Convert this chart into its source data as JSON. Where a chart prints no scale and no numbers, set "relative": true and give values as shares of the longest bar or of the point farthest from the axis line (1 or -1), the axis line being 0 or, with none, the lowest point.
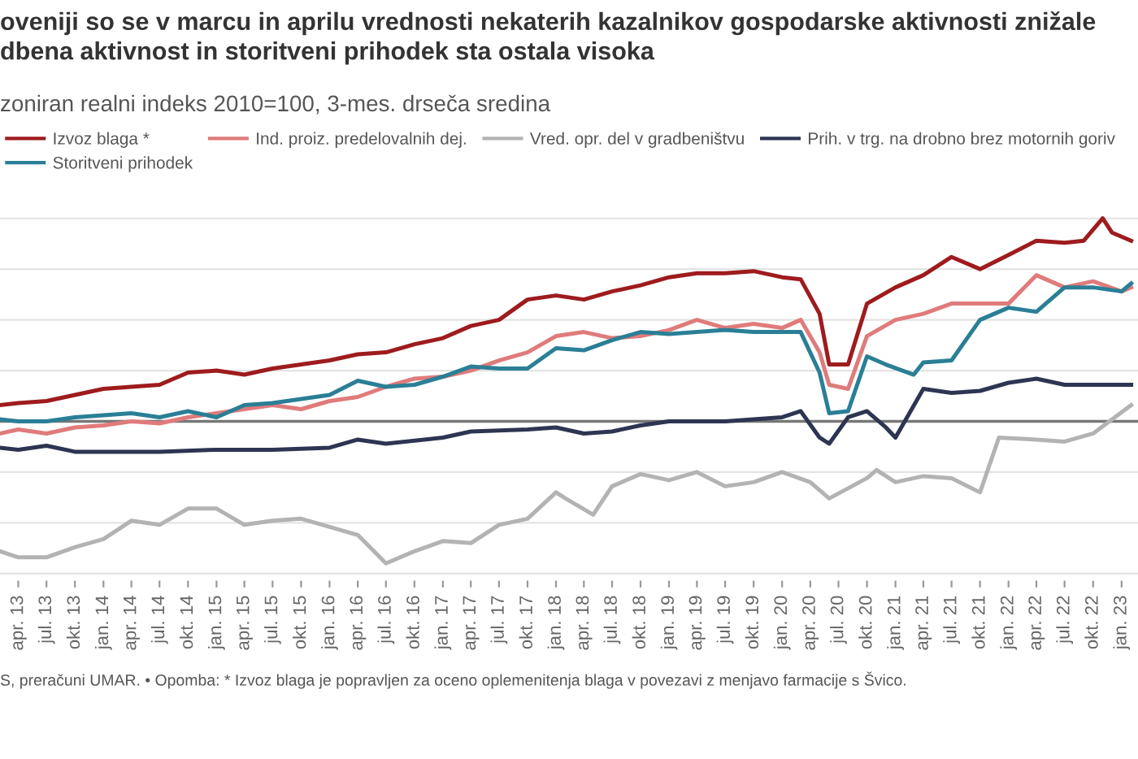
{
  "chart_data": {
    "type": "line",
    "title": "oveniji so se v marcu in aprilu vrednosti nekaterih kazalnikov gospodarske aktivnosti znižale\ndbena aktivnost in storitveni prihodek sta ostala visoka",
    "subtitle": "zoniran realni indeks 2010=100, 3-mes. drseča sredina",
    "relative": true,
    "grid": "y",
    "legend": "top left",
    "line_style": "solid",
    "marker": "none",
    "xlim": [
      "2013-02-01",
      "2023-02-23"
    ],
    "xticks": [
      {
        "value": "2013-04",
        "label": "apr. 13"
      },
      {
        "value": "2013-07",
        "label": "jul. 13"
      },
      {
        "value": "2013-10",
        "label": "okt. 13"
      },
      {
        "value": "2014-01",
        "label": "jan. 14"
      },
      {
        "value": "2014-04",
        "label": "apr. 14"
      },
      {
        "value": "2014-07",
        "label": "jul. 14"
      },
      {
        "value": "2014-10",
        "label": "okt. 14"
      },
      {
        "value": "2015-01",
        "label": "jan. 15"
      },
      {
        "value": "2015-04",
        "label": "apr. 15"
      },
      {
        "value": "2015-07",
        "label": "jul. 15"
      },
      {
        "value": "2015-10",
        "label": "okt. 15"
      },
      {
        "value": "2016-01",
        "label": "jan. 16"
      },
      {
        "value": "2016-04",
        "label": "apr. 16"
      },
      {
        "value": "2016-07",
        "label": "jul. 16"
      },
      {
        "value": "2016-10",
        "label": "okt. 16"
      },
      {
        "value": "2017-01",
        "label": "jan. 17"
      },
      {
        "value": "2017-04",
        "label": "apr. 17"
      },
      {
        "value": "2017-07",
        "label": "jul. 17"
      },
      {
        "value": "2017-10",
        "label": "okt. 17"
      },
      {
        "value": "2018-01",
        "label": "jan. 18"
      },
      {
        "value": "2018-04",
        "label": "apr. 18"
      },
      {
        "value": "2018-07",
        "label": "jul. 18"
      },
      {
        "value": "2018-10",
        "label": "okt. 18"
      },
      {
        "value": "2019-01",
        "label": "jan. 19"
      },
      {
        "value": "2019-04",
        "label": "apr. 19"
      },
      {
        "value": "2019-07",
        "label": "jul. 19"
      },
      {
        "value": "2019-10",
        "label": "okt. 19"
      },
      {
        "value": "2020-01",
        "label": "jan. 20"
      },
      {
        "value": "2020-04",
        "label": "apr. 20"
      },
      {
        "value": "2020-07",
        "label": "jul. 20"
      },
      {
        "value": "2020-10",
        "label": "okt. 20"
      },
      {
        "value": "2021-01",
        "label": "jan. 21"
      },
      {
        "value": "2021-04",
        "label": "apr. 21"
      },
      {
        "value": "2021-07",
        "label": "jul. 21"
      },
      {
        "value": "2021-10",
        "label": "okt. 21"
      },
      {
        "value": "2022-01",
        "label": "jan. 22"
      },
      {
        "value": "2022-04",
        "label": "apr. 22"
      },
      {
        "value": "2022-07",
        "label": "jul. 22"
      },
      {
        "value": "2022-10",
        "label": "okt. 22"
      },
      {
        "value": "2023-01",
        "label": "jan. 23"
      }
    ],
    "series": [
      {
        "name": "Izvoz blaga *",
        "color": "#9e1b1e",
        "x": [
          "2013-02",
          "2013-04",
          "2013-07",
          "2013-10",
          "2014-01",
          "2014-04",
          "2014-07",
          "2014-10",
          "2015-01",
          "2015-04",
          "2015-07",
          "2015-10",
          "2016-01",
          "2016-04",
          "2016-07",
          "2016-10",
          "2017-01",
          "2017-04",
          "2017-07",
          "2017-10",
          "2018-01",
          "2018-04",
          "2018-07",
          "2018-10",
          "2019-01",
          "2019-04",
          "2019-07",
          "2019-10",
          "2020-01",
          "2020-03",
          "2020-05",
          "2020-06",
          "2020-08",
          "2020-10",
          "2021-01",
          "2021-04",
          "2021-07",
          "2021-10",
          "2022-01",
          "2022-04",
          "2022-07",
          "2022-09",
          "2022-11",
          "2022-12",
          "2023-02"
        ],
        "values": [
          0.08,
          0.09,
          0.1,
          0.13,
          0.16,
          0.17,
          0.18,
          0.24,
          0.25,
          0.23,
          0.26,
          0.28,
          0.3,
          0.33,
          0.34,
          0.38,
          0.41,
          0.47,
          0.5,
          0.6,
          0.62,
          0.6,
          0.64,
          0.67,
          0.71,
          0.73,
          0.73,
          0.74,
          0.71,
          0.7,
          0.53,
          0.28,
          0.28,
          0.58,
          0.66,
          0.72,
          0.81,
          0.75,
          0.82,
          0.89,
          0.88,
          0.89,
          1.0,
          0.93,
          0.89
        ]
      },
      {
        "name": "Ind. proiz. predelovalnih dej.",
        "color": "#e07b7b",
        "x": [
          "2013-02",
          "2013-04",
          "2013-07",
          "2013-10",
          "2014-01",
          "2014-04",
          "2014-07",
          "2014-10",
          "2015-01",
          "2015-04",
          "2015-07",
          "2015-10",
          "2016-01",
          "2016-04",
          "2016-07",
          "2016-10",
          "2017-01",
          "2017-04",
          "2017-07",
          "2017-10",
          "2018-01",
          "2018-04",
          "2018-07",
          "2018-10",
          "2019-01",
          "2019-04",
          "2019-07",
          "2019-10",
          "2020-01",
          "2020-03",
          "2020-05",
          "2020-06",
          "2020-08",
          "2020-10",
          "2021-01",
          "2021-04",
          "2021-07",
          "2021-10",
          "2022-01",
          "2022-04",
          "2022-07",
          "2022-10",
          "2023-01",
          "2023-02"
        ],
        "values": [
          -0.06,
          -0.04,
          -0.06,
          -0.03,
          -0.02,
          0.0,
          -0.01,
          0.02,
          0.04,
          0.06,
          0.08,
          0.06,
          0.1,
          0.12,
          0.17,
          0.21,
          0.22,
          0.25,
          0.3,
          0.34,
          0.42,
          0.44,
          0.41,
          0.42,
          0.45,
          0.5,
          0.46,
          0.48,
          0.46,
          0.5,
          0.34,
          0.18,
          0.16,
          0.42,
          0.5,
          0.53,
          0.58,
          0.58,
          0.58,
          0.72,
          0.66,
          0.69,
          0.64,
          0.66
        ]
      },
      {
        "name": "Vred. opr. del v gradbeništvu",
        "color": "#b3b3b3",
        "x": [
          "2013-02",
          "2013-04",
          "2013-07",
          "2013-10",
          "2014-01",
          "2014-04",
          "2014-07",
          "2014-10",
          "2015-01",
          "2015-04",
          "2015-07",
          "2015-10",
          "2016-01",
          "2016-04",
          "2016-07",
          "2016-10",
          "2017-01",
          "2017-04",
          "2017-07",
          "2017-10",
          "2018-01",
          "2018-02",
          "2018-05",
          "2018-07",
          "2018-10",
          "2019-01",
          "2019-04",
          "2019-07",
          "2019-10",
          "2020-01",
          "2020-04",
          "2020-06",
          "2020-10",
          "2020-11",
          "2021-01",
          "2021-04",
          "2021-07",
          "2021-10",
          "2021-12",
          "2022-04",
          "2022-07",
          "2022-10",
          "2023-02"
        ],
        "values": [
          -0.64,
          -0.67,
          -0.67,
          -0.62,
          -0.58,
          -0.49,
          -0.51,
          -0.43,
          -0.43,
          -0.51,
          -0.49,
          -0.48,
          -0.52,
          -0.56,
          -0.7,
          -0.64,
          -0.59,
          -0.6,
          -0.51,
          -0.48,
          -0.35,
          -0.38,
          -0.46,
          -0.32,
          -0.26,
          -0.29,
          -0.25,
          -0.32,
          -0.3,
          -0.25,
          -0.3,
          -0.38,
          -0.28,
          -0.24,
          -0.3,
          -0.27,
          -0.28,
          -0.35,
          -0.08,
          -0.09,
          -0.1,
          -0.06,
          0.08
        ]
      },
      {
        "name": "Prih. v trg. na drobno brez motornih goriv",
        "color": "#2e3552",
        "x": [
          "2013-02",
          "2013-04",
          "2013-07",
          "2013-10",
          "2014-01",
          "2014-07",
          "2015-01",
          "2015-07",
          "2016-01",
          "2016-04",
          "2016-07",
          "2017-01",
          "2017-04",
          "2017-10",
          "2018-01",
          "2018-04",
          "2018-07",
          "2018-10",
          "2019-01",
          "2019-07",
          "2020-01",
          "2020-03",
          "2020-05",
          "2020-06",
          "2020-08",
          "2020-10",
          "2020-12",
          "2021-01",
          "2021-04",
          "2021-07",
          "2021-10",
          "2022-01",
          "2022-04",
          "2022-07",
          "2022-10",
          "2023-02"
        ],
        "values": [
          -0.13,
          -0.14,
          -0.12,
          -0.15,
          -0.15,
          -0.15,
          -0.14,
          -0.14,
          -0.13,
          -0.09,
          -0.11,
          -0.08,
          -0.05,
          -0.04,
          -0.03,
          -0.06,
          -0.05,
          -0.02,
          0.0,
          0.0,
          0.02,
          0.05,
          -0.08,
          -0.11,
          0.02,
          0.05,
          -0.03,
          -0.08,
          0.16,
          0.14,
          0.15,
          0.19,
          0.21,
          0.18,
          0.18,
          0.18
        ]
      },
      {
        "name": "Storitveni prihodek",
        "color": "#2a7f96",
        "x": [
          "2013-02",
          "2013-04",
          "2013-07",
          "2013-10",
          "2014-01",
          "2014-04",
          "2014-07",
          "2014-10",
          "2015-01",
          "2015-04",
          "2015-07",
          "2015-10",
          "2016-01",
          "2016-04",
          "2016-07",
          "2016-10",
          "2017-01",
          "2017-04",
          "2017-07",
          "2017-10",
          "2018-01",
          "2018-04",
          "2018-07",
          "2018-10",
          "2019-01",
          "2019-04",
          "2019-07",
          "2019-10",
          "2020-01",
          "2020-03",
          "2020-05",
          "2020-06",
          "2020-08",
          "2020-10",
          "2020-12",
          "2021-03",
          "2021-04",
          "2021-07",
          "2021-10",
          "2022-01",
          "2022-04",
          "2022-07",
          "2022-10",
          "2023-01",
          "2023-02"
        ],
        "values": [
          0.01,
          0.0,
          0.0,
          0.02,
          0.03,
          0.04,
          0.02,
          0.05,
          0.02,
          0.08,
          0.09,
          0.11,
          0.13,
          0.2,
          0.17,
          0.18,
          0.22,
          0.27,
          0.26,
          0.26,
          0.36,
          0.35,
          0.4,
          0.44,
          0.43,
          0.44,
          0.45,
          0.44,
          0.44,
          0.44,
          0.24,
          0.04,
          0.05,
          0.32,
          0.28,
          0.23,
          0.29,
          0.3,
          0.5,
          0.56,
          0.54,
          0.66,
          0.66,
          0.64,
          0.68
        ]
      }
    ],
    "annotations": [
      "S, preračuni UMAR. • Opomba: * Izvoz blaga je popravljen za oceno oplemenitenja blaga v povezavi z menjavo farmacije s Švico."
    ]
  }
}
